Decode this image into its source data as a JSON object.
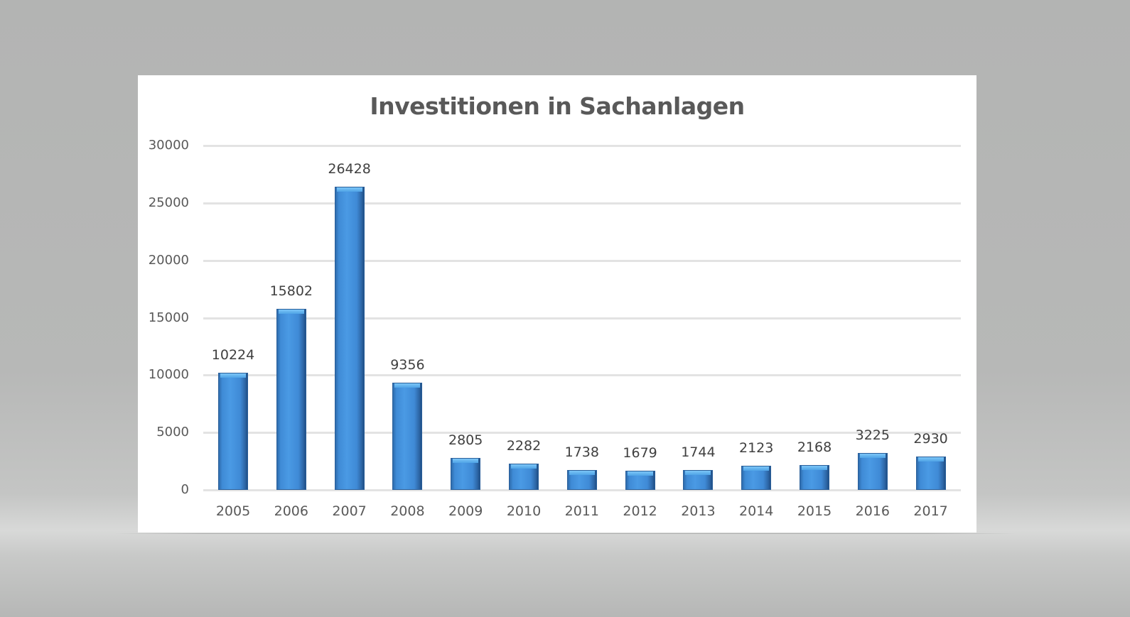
{
  "chart_data": {
    "type": "bar",
    "title": "Investitionen in Sachanlagen",
    "xlabel": "",
    "ylabel": "",
    "categories": [
      "2005",
      "2006",
      "2007",
      "2008",
      "2009",
      "2010",
      "2011",
      "2012",
      "2013",
      "2014",
      "2015",
      "2016",
      "2017"
    ],
    "values": [
      10224,
      15802,
      26428,
      9356,
      2805,
      2282,
      1738,
      1679,
      1744,
      2123,
      2168,
      3225,
      2930
    ],
    "ylim": [
      0,
      30000
    ],
    "yticks": [
      "0",
      "5000",
      "10000",
      "15000",
      "20000",
      "25000",
      "30000"
    ],
    "grid": true,
    "legend": "none",
    "data_labels": true,
    "bar_color": "#3f8ad6"
  }
}
